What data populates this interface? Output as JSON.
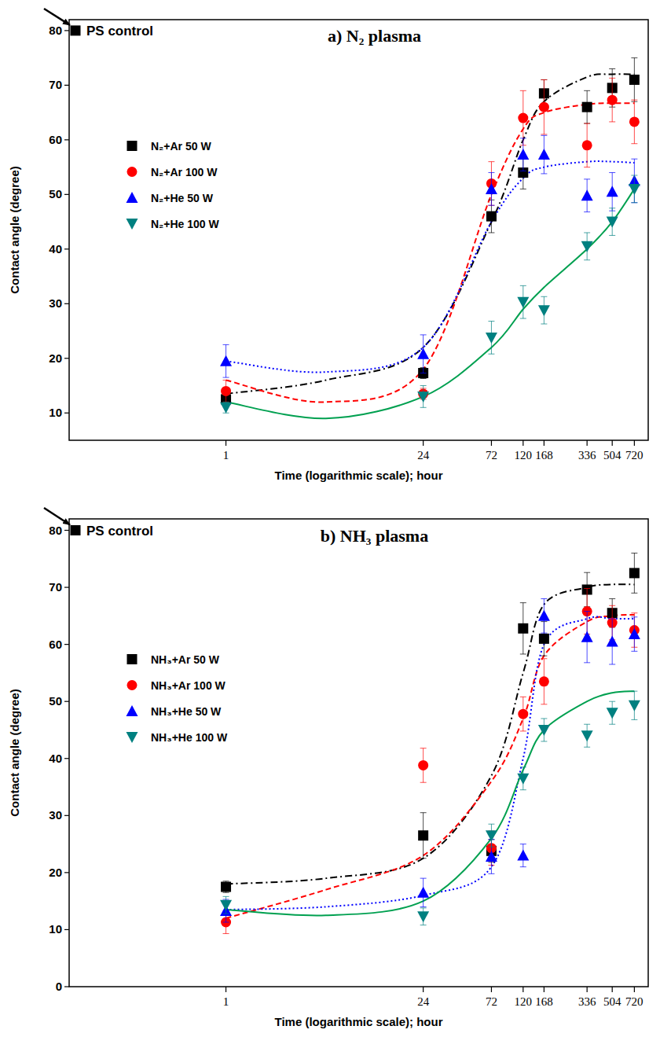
{
  "chart_data": [
    {
      "type": "scatter",
      "title": "a) N₂ plasma",
      "x_label": "Time (logarithmic scale); hour",
      "y_label": "Contact angle (degree)",
      "log": "x",
      "grid": false,
      "legend": "left",
      "x": [
        1,
        24,
        72,
        120,
        168,
        336,
        504,
        720
      ],
      "xlim": [
        0.08,
        900
      ],
      "xticks": [
        1,
        24,
        72,
        120,
        168,
        336,
        504,
        720
      ],
      "ylim": [
        5,
        82
      ],
      "yticks": [
        10,
        20,
        30,
        40,
        50,
        60,
        70,
        80
      ],
      "control": {
        "label": "PS control",
        "value": 80,
        "color": "#000000",
        "marker": "square"
      },
      "series": [
        {
          "name": "N₂+Ar 50 W",
          "color": "#000000",
          "marker": "square",
          "values": [
            12.5,
            17.3,
            46,
            54,
            68.5,
            66,
            69.5,
            71
          ],
          "errors": [
            1,
            1,
            3,
            3,
            2.5,
            3,
            3.5,
            4
          ],
          "fit": {
            "x": [
              1,
              5,
              24,
              72,
              120,
              168,
              336,
              504,
              720
            ],
            "values": [
              13.5,
              16,
              22,
              45,
              60,
              67,
              71.5,
              72,
              72
            ],
            "color": "#000000",
            "line_style": "dash-dot"
          }
        },
        {
          "name": "N₂+Ar 100 W",
          "color": "#ff0000",
          "marker": "circle",
          "values": [
            14,
            13.5,
            52,
            64,
            66,
            59,
            67.3,
            63.3
          ],
          "errors": [
            2,
            1,
            4,
            5,
            5,
            4,
            4,
            4
          ],
          "fit": {
            "x": [
              1,
              5,
              24,
              72,
              120,
              168,
              336,
              504,
              720
            ],
            "values": [
              16,
              12,
              18,
              50,
              62,
              65,
              66.5,
              66.7,
              66.7
            ],
            "color": "#ff0000",
            "line_style": "dashed"
          }
        },
        {
          "name": "N₂+He 50 W",
          "color": "#0000ff",
          "marker": "triangle-up",
          "values": [
            19.5,
            20.8,
            51,
            57.3,
            57.3,
            49.8,
            50.5,
            52.5
          ],
          "errors": [
            3,
            3.5,
            3,
            3,
            3.5,
            3,
            3.5,
            4
          ],
          "fit": {
            "x": [
              1,
              5,
              24,
              72,
              120,
              168,
              336,
              504,
              720
            ],
            "values": [
              19.5,
              17.5,
              22,
              45,
              53,
              55,
              56,
              56,
              55.8
            ],
            "color": "#0000ff",
            "line_style": "dotted"
          }
        },
        {
          "name": "N₂+He 100 W",
          "color": "#008080",
          "marker": "triangle-down",
          "values": [
            11,
            13,
            23.8,
            30.3,
            28.8,
            40.5,
            45,
            51
          ],
          "errors": [
            1,
            2,
            3,
            3,
            2.5,
            2.5,
            2.5,
            2.5
          ],
          "fit": {
            "x": [
              1,
              5,
              24,
              72,
              120,
              168,
              336,
              504,
              720
            ],
            "values": [
              12,
              9,
              13,
              22,
              29,
              33,
              40,
              45,
              51
            ],
            "color": "#00a050",
            "line_style": "solid"
          }
        }
      ]
    },
    {
      "type": "scatter",
      "title": "b) NH₃ plasma",
      "x_label": "Time (logarithmic scale); hour",
      "y_label": "Contact angle (degree)",
      "log": "x",
      "grid": false,
      "legend": "left",
      "x": [
        1,
        24,
        72,
        120,
        168,
        336,
        504,
        720
      ],
      "xlim": [
        0.08,
        900
      ],
      "xticks": [
        1,
        24,
        72,
        120,
        168,
        336,
        504,
        720
      ],
      "ylim": [
        0,
        82
      ],
      "yticks": [
        0,
        10,
        20,
        30,
        40,
        50,
        60,
        70,
        80
      ],
      "control": {
        "label": "PS control",
        "value": 80,
        "color": "#000000",
        "marker": "square"
      },
      "series": [
        {
          "name": "NH₃+Ar 50 W",
          "color": "#000000",
          "marker": "square",
          "values": [
            17.5,
            26.5,
            23.8,
            62.8,
            61,
            69.6,
            65.5,
            72.5
          ],
          "errors": [
            1,
            4,
            2,
            4.5,
            3,
            3,
            2.5,
            3.5
          ],
          "fit": {
            "x": [
              1,
              5,
              24,
              72,
              120,
              168,
              336,
              504,
              720
            ],
            "values": [
              18,
              19,
              22.5,
              37,
              55,
              67,
              70,
              70.5,
              70.5
            ],
            "color": "#000000",
            "line_style": "dash-dot"
          }
        },
        {
          "name": "NH₃+Ar 100 W",
          "color": "#ff0000",
          "marker": "circle",
          "values": [
            11.3,
            38.8,
            24.3,
            47.8,
            53.5,
            65.8,
            63.8,
            62.5
          ],
          "errors": [
            2,
            3,
            3,
            3,
            4,
            4,
            3,
            3
          ],
          "fit": {
            "x": [
              1,
              5,
              24,
              72,
              120,
              168,
              336,
              504,
              720
            ],
            "values": [
              12,
              17,
              23,
              36,
              47,
              58,
              64,
              65,
              65.2
            ],
            "color": "#ff0000",
            "line_style": "dashed"
          }
        },
        {
          "name": "NH₃+He 50 W",
          "color": "#0000ff",
          "marker": "triangle-up",
          "values": [
            13.3,
            16.5,
            22.8,
            23,
            65,
            61.3,
            60.5,
            61.8
          ],
          "errors": [
            2,
            2.5,
            3,
            2,
            3,
            4.5,
            4,
            3
          ],
          "fit": {
            "x": [
              1,
              5,
              24,
              72,
              120,
              168,
              336,
              504,
              720
            ],
            "values": [
              13.5,
              14,
              16,
              21,
              40,
              60,
              64.5,
              64.5,
              64.5
            ],
            "color": "#0000ff",
            "line_style": "dotted"
          }
        },
        {
          "name": "NH₃+He 100 W",
          "color": "#008080",
          "marker": "triangle-down",
          "values": [
            14.3,
            12.3,
            26.5,
            36.5,
            45,
            44,
            48,
            49.3
          ],
          "errors": [
            1.5,
            1.5,
            2,
            2,
            2,
            2,
            2,
            2.5
          ],
          "fit": {
            "x": [
              1,
              5,
              24,
              72,
              120,
              168,
              336,
              504,
              720
            ],
            "values": [
              13.5,
              12.5,
              15,
              26,
              38,
              45,
              50,
              51.5,
              51.8
            ],
            "color": "#00a050",
            "line_style": "solid"
          }
        }
      ]
    }
  ]
}
